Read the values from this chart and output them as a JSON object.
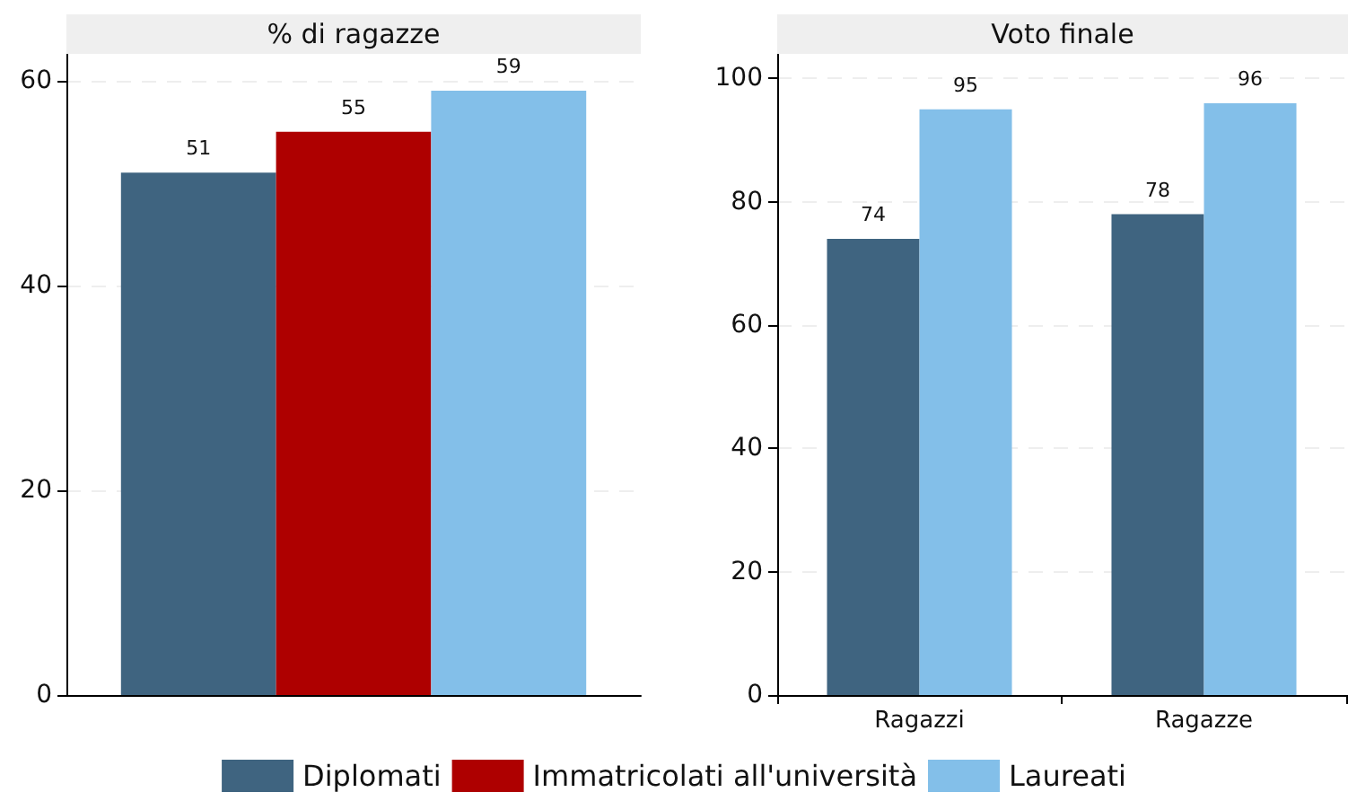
{
  "chart_data": [
    {
      "type": "bar",
      "title": "% di ragazze",
      "categories": [
        null
      ],
      "series": [
        {
          "name": "Diplomati",
          "color": "#3f6480",
          "values": [
            51
          ]
        },
        {
          "name": "Immatricolati all'università",
          "color": "#ae0000",
          "values": [
            55
          ]
        },
        {
          "name": "Laureati",
          "color": "#83bfe9",
          "values": [
            59
          ]
        }
      ],
      "ylim": [
        0,
        62.6
      ],
      "yticks": [
        0,
        20,
        40,
        60
      ],
      "grid": "y",
      "data_labels": true,
      "legend": "bottom",
      "tick_labels": "y"
    },
    {
      "type": "bar",
      "title": "Voto finale",
      "categories": [
        "Ragazzi",
        "Ragazze"
      ],
      "series": [
        {
          "name": "Diplomati",
          "color": "#3f6480",
          "values": [
            74,
            78
          ]
        },
        {
          "name": "Laureati",
          "color": "#83bfe9",
          "values": [
            95,
            96
          ]
        }
      ],
      "ylim": [
        0,
        104
      ],
      "yticks": [
        0,
        20,
        40,
        60,
        80,
        100
      ],
      "grid": "y",
      "data_labels": true
    }
  ]
}
